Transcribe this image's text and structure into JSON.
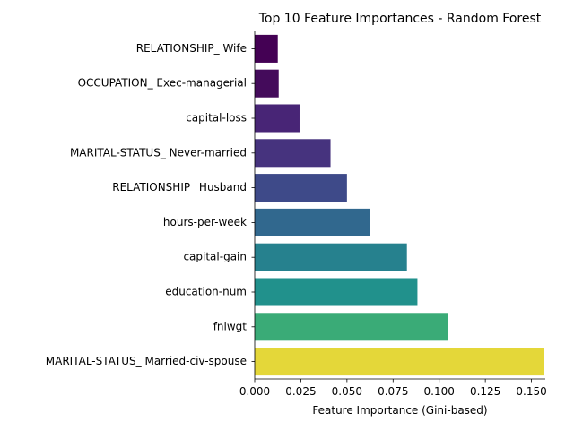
{
  "chart_data": {
    "type": "bar",
    "orientation": "horizontal",
    "title": "Top 10 Feature Importances - Random Forest",
    "xlabel": "Feature Importance (Gini-based)",
    "ylabel": "",
    "xlim": [
      0,
      0.1575
    ],
    "xticks": [
      "0.000",
      "0.025",
      "0.050",
      "0.075",
      "0.100",
      "0.125",
      "0.150"
    ],
    "grid": false,
    "categories": [
      "RELATIONSHIP_ Wife",
      "OCCUPATION_ Exec-managerial",
      "capital-loss",
      "MARITAL-STATUS_ Never-married",
      "RELATIONSHIP_ Husband",
      "hours-per-week",
      "capital-gain",
      "education-num",
      "fnlwgt",
      "MARITAL-STATUS_ Married-civ-spouse"
    ],
    "values": [
      0.0125,
      0.013,
      0.0243,
      0.0411,
      0.05,
      0.0627,
      0.0825,
      0.0882,
      0.1046,
      0.157
    ],
    "colors": [
      "#440154",
      "#440b5b",
      "#482576",
      "#46337e",
      "#3e4a89",
      "#31688e",
      "#26818e",
      "#21918c",
      "#3aab77",
      "#e4d739"
    ]
  }
}
